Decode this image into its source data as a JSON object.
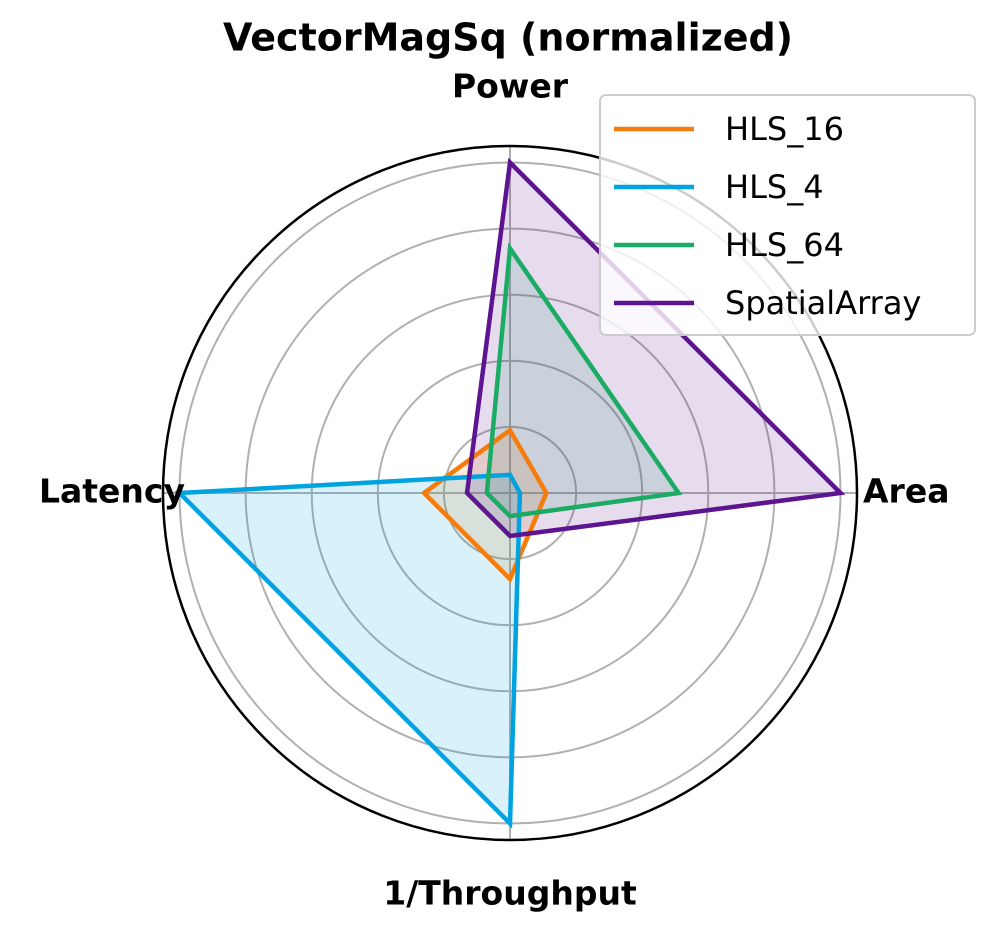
{
  "chart_data": {
    "type": "radar",
    "title": "VectorMagSq (normalized)",
    "categories": [
      "Power",
      "Area",
      "1/Throughput",
      "Latency"
    ],
    "ylim": [
      0,
      1.05
    ],
    "yticks": [
      0.2,
      0.4,
      0.6,
      0.8,
      1.0
    ],
    "grid": true,
    "legend": "upper right",
    "series": [
      {
        "name": "HLS_16",
        "color": "#f57c0a",
        "values": [
          0.19,
          0.11,
          0.26,
          0.26
        ]
      },
      {
        "name": "HLS_4",
        "color": "#00a2e0",
        "values": [
          0.055,
          0.03,
          1.0,
          1.0
        ]
      },
      {
        "name": "HLS_64",
        "color": "#1bab64",
        "values": [
          0.74,
          0.51,
          0.07,
          0.07
        ]
      },
      {
        "name": "SpatialArray",
        "color": "#5c1490",
        "values": [
          1.0,
          1.0,
          0.13,
          0.13
        ]
      }
    ]
  }
}
